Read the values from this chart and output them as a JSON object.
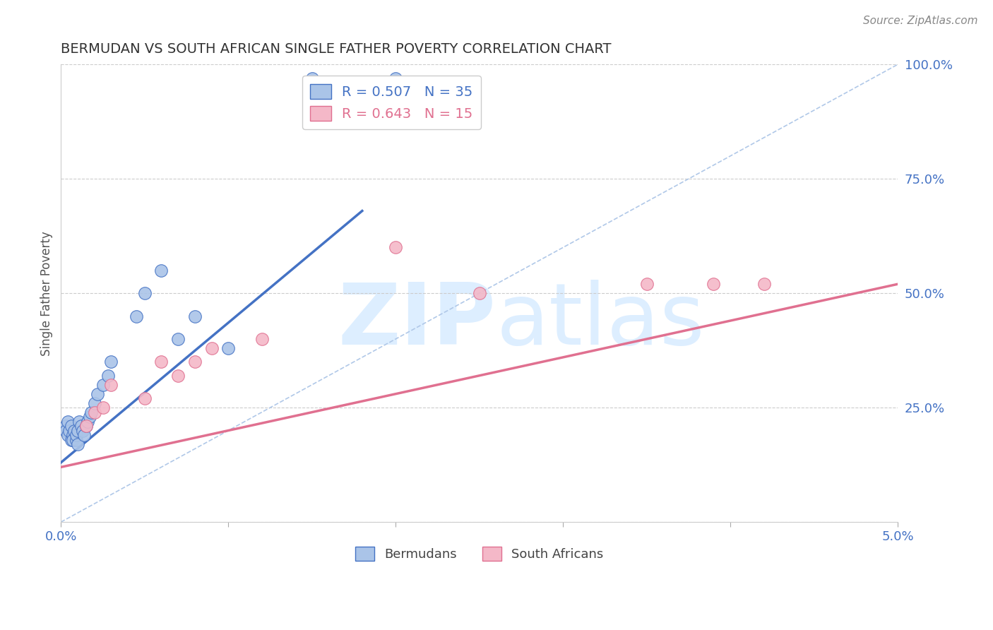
{
  "title": "BERMUDAN VS SOUTH AFRICAN SINGLE FATHER POVERTY CORRELATION CHART",
  "source": "Source: ZipAtlas.com",
  "ylabel": "Single Father Poverty",
  "xlim": [
    0.0,
    0.05
  ],
  "ylim": [
    0.0,
    1.0
  ],
  "xticks": [
    0.0,
    0.01,
    0.02,
    0.03,
    0.04,
    0.05
  ],
  "xticklabels": [
    "0.0%",
    "",
    "",
    "",
    "",
    "5.0%"
  ],
  "ytick_right_values": [
    0.0,
    0.25,
    0.5,
    0.75,
    1.0
  ],
  "ytick_right_labels": [
    "",
    "25.0%",
    "50.0%",
    "75.0%",
    "100.0%"
  ],
  "blue_R": "0.507",
  "blue_N": "35",
  "pink_R": "0.643",
  "pink_N": "15",
  "legend_label_blue": "Bermudans",
  "legend_label_pink": "South Africans",
  "bermudan_x": [
    0.0003,
    0.0003,
    0.0004,
    0.0004,
    0.0005,
    0.0006,
    0.0006,
    0.0007,
    0.0007,
    0.0008,
    0.0009,
    0.0009,
    0.001,
    0.001,
    0.0011,
    0.0012,
    0.0013,
    0.0014,
    0.0015,
    0.0016,
    0.0017,
    0.0018,
    0.002,
    0.0022,
    0.0025,
    0.0028,
    0.003,
    0.0045,
    0.005,
    0.006,
    0.007,
    0.008,
    0.01,
    0.015,
    0.02
  ],
  "bermudan_y": [
    0.21,
    0.2,
    0.22,
    0.19,
    0.2,
    0.18,
    0.21,
    0.19,
    0.18,
    0.2,
    0.18,
    0.19,
    0.2,
    0.17,
    0.22,
    0.21,
    0.2,
    0.19,
    0.21,
    0.22,
    0.23,
    0.24,
    0.26,
    0.28,
    0.3,
    0.32,
    0.35,
    0.45,
    0.5,
    0.55,
    0.4,
    0.45,
    0.38,
    0.97,
    0.97
  ],
  "sa_x": [
    0.0015,
    0.002,
    0.0025,
    0.003,
    0.005,
    0.006,
    0.007,
    0.008,
    0.009,
    0.012,
    0.02,
    0.025,
    0.035,
    0.039,
    0.042
  ],
  "sa_y": [
    0.21,
    0.24,
    0.25,
    0.3,
    0.27,
    0.35,
    0.32,
    0.35,
    0.38,
    0.4,
    0.6,
    0.5,
    0.52,
    0.52,
    0.52
  ],
  "blue_line_x": [
    0.0,
    0.018
  ],
  "blue_line_y": [
    0.13,
    0.68
  ],
  "pink_line_x": [
    0.0,
    0.05
  ],
  "pink_line_y": [
    0.12,
    0.52
  ],
  "ref_line_x": [
    0.0,
    0.05
  ],
  "ref_line_y": [
    0.0,
    1.0
  ],
  "blue_line_color": "#4472c4",
  "pink_line_color": "#e07090",
  "blue_dot_facecolor": "#aac4e8",
  "blue_dot_edgecolor": "#4472c4",
  "pink_dot_facecolor": "#f4b8c8",
  "pink_dot_edgecolor": "#e07090",
  "ref_line_color": "#b0c8e8",
  "grid_color": "#cccccc",
  "background_color": "#ffffff",
  "title_color": "#333333",
  "axis_label_color": "#555555",
  "right_label_color": "#4472c4",
  "xaxis_label_color": "#4472c4",
  "watermark_color": "#ddeeff"
}
